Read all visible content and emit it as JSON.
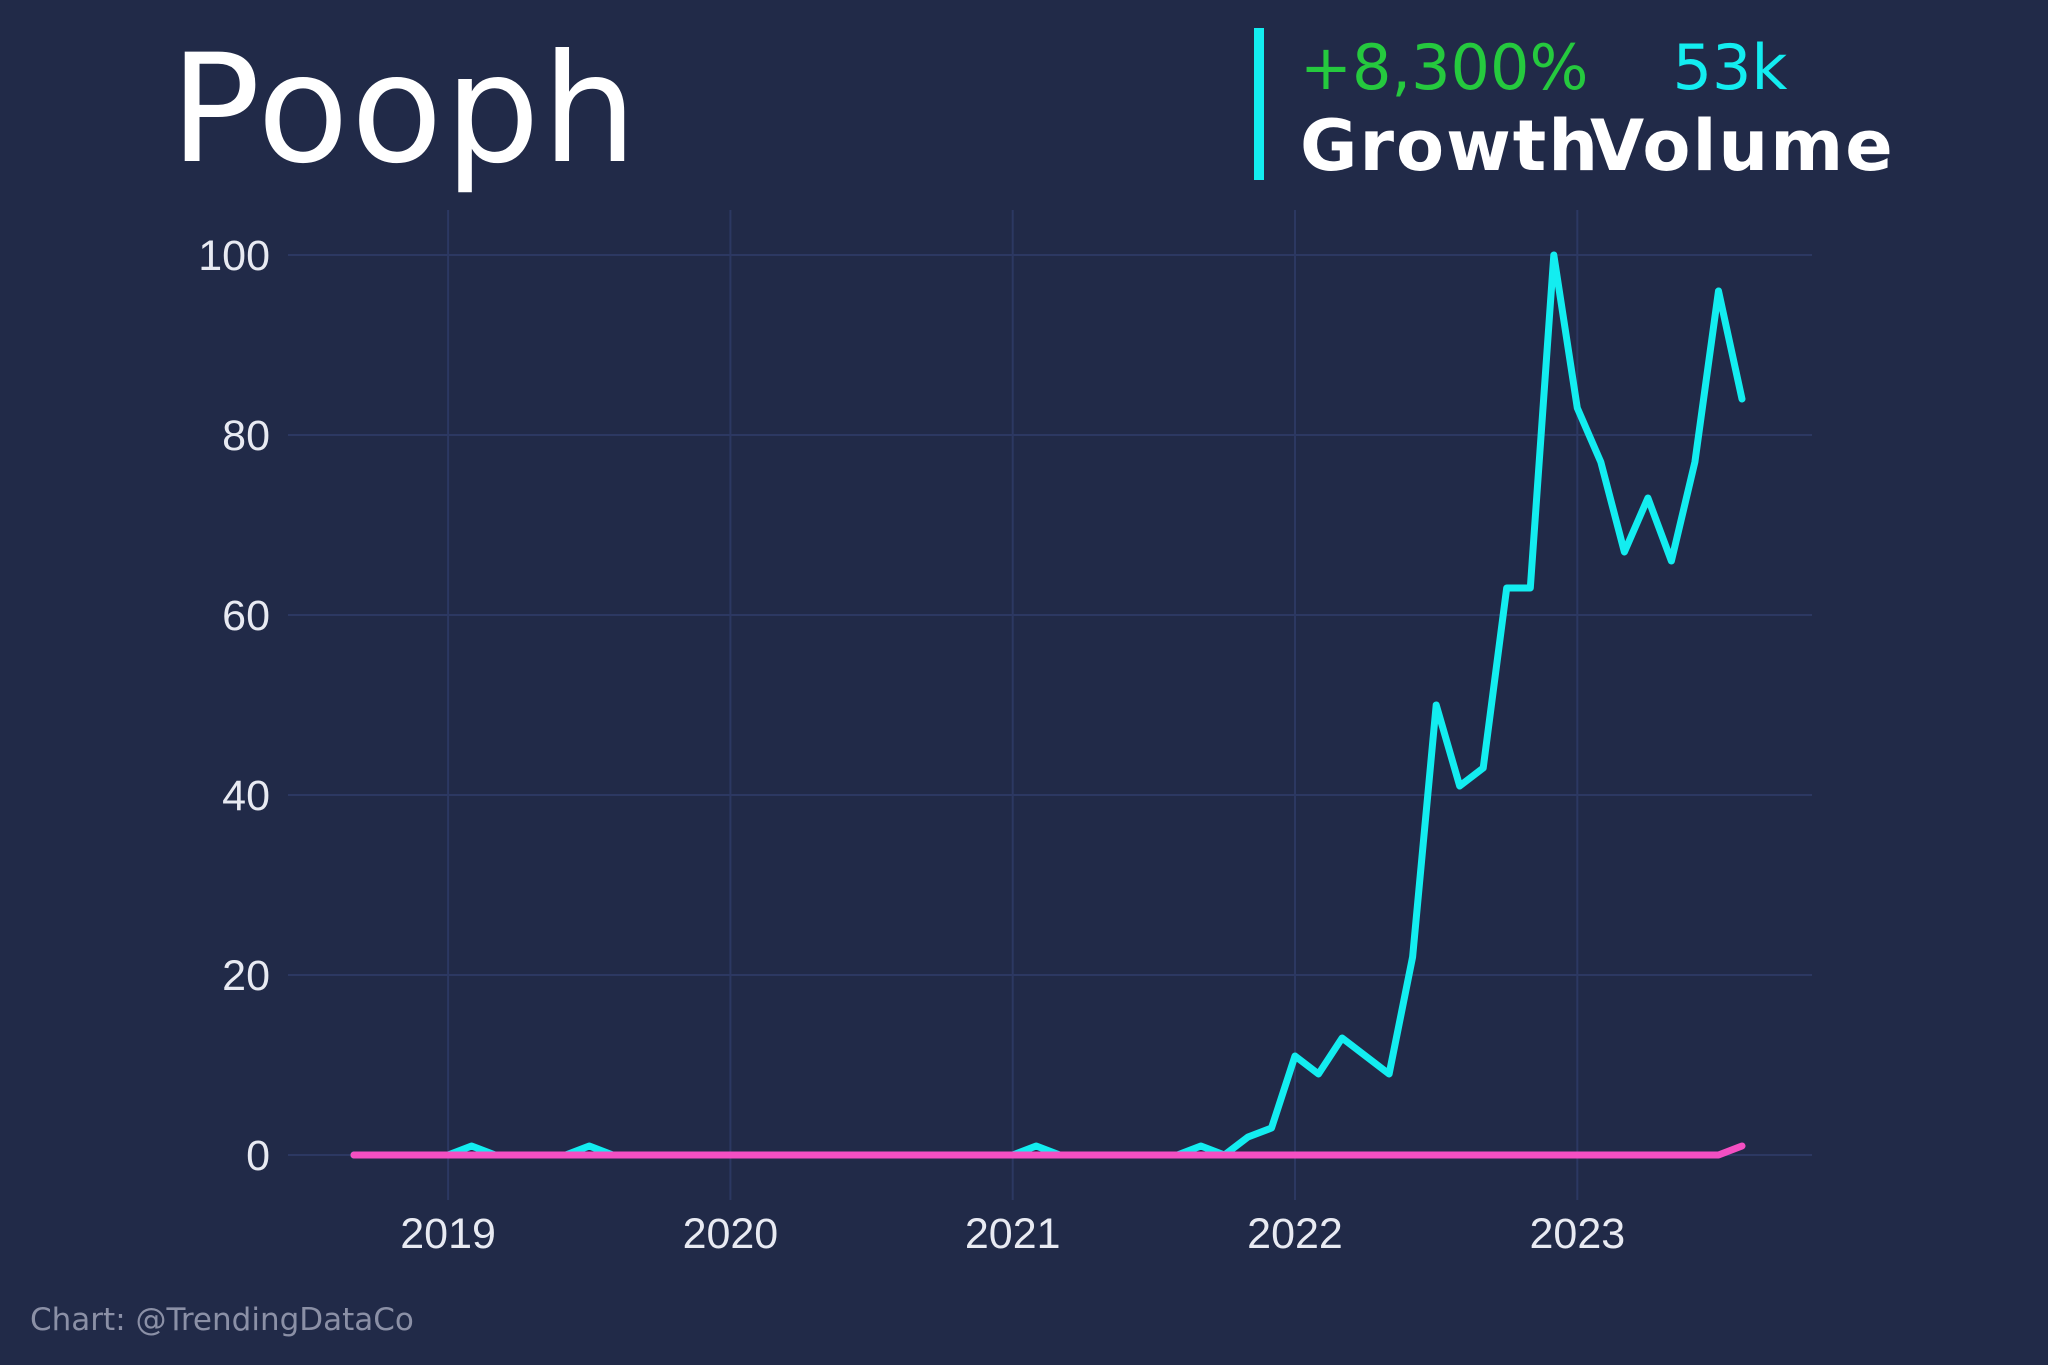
{
  "header": {
    "title": "Pooph",
    "growth_value": "+8,300%",
    "growth_label": "Growth",
    "volume_value": "53k",
    "volume_label": "Volume"
  },
  "footer": {
    "credit": "Chart: @TrendingDataCo"
  },
  "colors": {
    "background": "#212a48",
    "grid": "#2c3862",
    "series_main": "#13edf0",
    "series_baseline": "#f44fc2",
    "growth": "#25c93e"
  },
  "chart_data": {
    "type": "line",
    "title": "",
    "xlabel": "",
    "ylabel": "",
    "x_ticks": [
      "2019",
      "2020",
      "2021",
      "2022",
      "2023"
    ],
    "y_ticks": [
      0,
      20,
      40,
      60,
      80,
      100
    ],
    "ylim": [
      0,
      100
    ],
    "xlim": [
      "2018-09",
      "2023-08"
    ],
    "grid": true,
    "legend": "none",
    "x": [
      "2018-09",
      "2018-10",
      "2018-11",
      "2018-12",
      "2019-01",
      "2019-02",
      "2019-03",
      "2019-04",
      "2019-05",
      "2019-06",
      "2019-07",
      "2019-08",
      "2019-09",
      "2019-10",
      "2019-11",
      "2019-12",
      "2020-01",
      "2020-02",
      "2020-03",
      "2020-04",
      "2020-05",
      "2020-06",
      "2020-07",
      "2020-08",
      "2020-09",
      "2020-10",
      "2020-11",
      "2020-12",
      "2021-01",
      "2021-02",
      "2021-03",
      "2021-04",
      "2021-05",
      "2021-06",
      "2021-07",
      "2021-08",
      "2021-09",
      "2021-10",
      "2021-11",
      "2021-12",
      "2022-01",
      "2022-02",
      "2022-03",
      "2022-04",
      "2022-05",
      "2022-06",
      "2022-07",
      "2022-08",
      "2022-09",
      "2022-10",
      "2022-11",
      "2022-12",
      "2023-01",
      "2023-02",
      "2023-03",
      "2023-04",
      "2023-05",
      "2023-06",
      "2023-07",
      "2023-08"
    ],
    "series": [
      {
        "values": [
          0,
          0,
          0,
          0,
          0,
          1,
          0,
          0,
          0,
          0,
          1,
          0,
          0,
          0,
          0,
          0,
          0,
          0,
          0,
          0,
          0,
          0,
          0,
          0,
          0,
          0,
          0,
          0,
          0,
          1,
          0,
          0,
          0,
          0,
          0,
          0,
          1,
          0,
          2,
          3,
          11,
          9,
          13,
          11,
          9,
          22,
          50,
          41,
          43,
          63,
          63,
          100,
          83,
          77,
          67,
          73,
          66,
          77,
          96,
          84
        ]
      },
      {
        "values": [
          0,
          0,
          0,
          0,
          0,
          0,
          0,
          0,
          0,
          0,
          0,
          0,
          0,
          0,
          0,
          0,
          0,
          0,
          0,
          0,
          0,
          0,
          0,
          0,
          0,
          0,
          0,
          0,
          0,
          0,
          0,
          0,
          0,
          0,
          0,
          0,
          0,
          0,
          0,
          0,
          0,
          0,
          0,
          0,
          0,
          0,
          0,
          0,
          0,
          0,
          0,
          0,
          0,
          0,
          0,
          0,
          0,
          0,
          0,
          1
        ]
      }
    ]
  }
}
